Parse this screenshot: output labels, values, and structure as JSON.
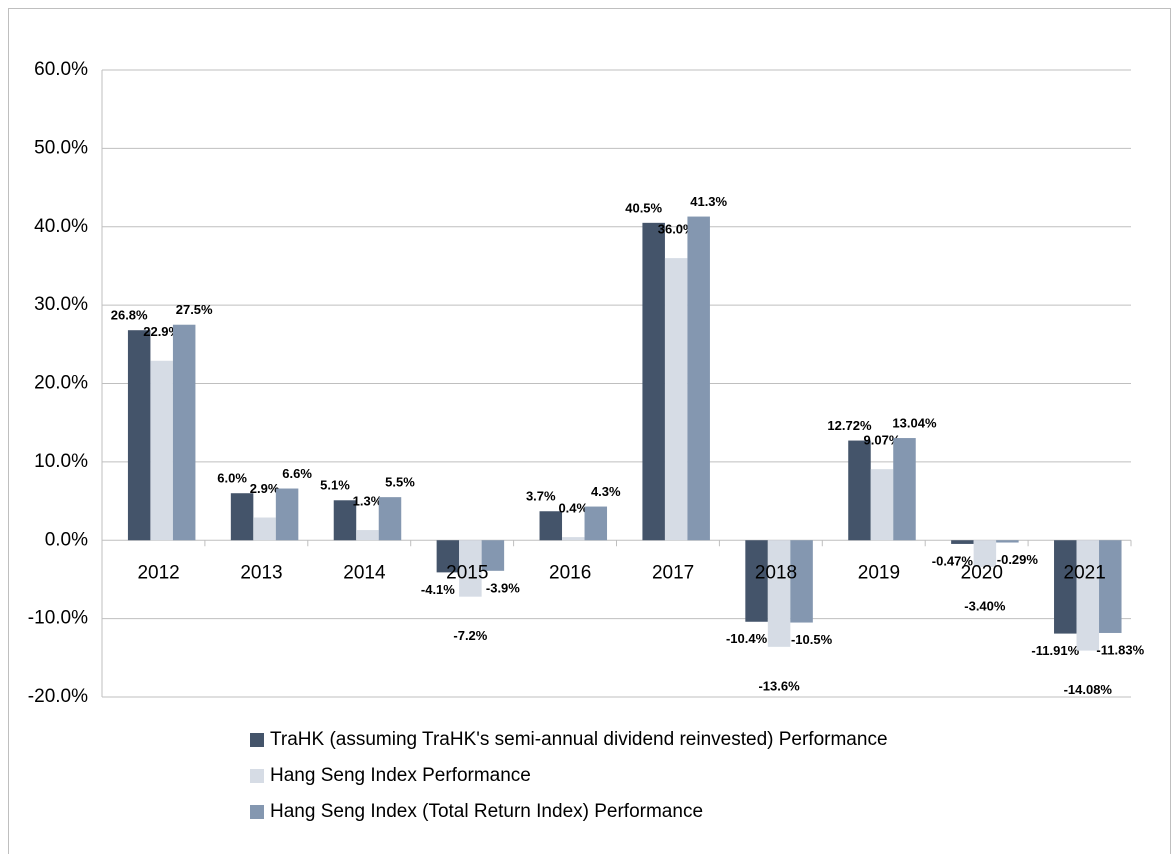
{
  "chart_data": {
    "type": "bar",
    "categories": [
      "2012",
      "2013",
      "2014",
      "2015",
      "2016",
      "2017",
      "2018",
      "2019",
      "2020",
      "2021"
    ],
    "series": [
      {
        "name": "TraHK (assuming TraHK's semi-annual dividend reinvested) Performance",
        "color": "#44546a",
        "values": [
          26.8,
          6.0,
          5.1,
          -4.1,
          3.7,
          40.5,
          -10.4,
          12.72,
          -0.47,
          -11.91
        ],
        "value_labels": [
          "26.8%",
          "6.0%",
          "5.1%",
          "-4.1%",
          "3.7%",
          "40.5%",
          "-10.4%",
          "12.72%",
          "-0.47%",
          "-11.91%"
        ]
      },
      {
        "name": "Hang Seng Index Performance",
        "color": "#d6dce5",
        "values": [
          22.9,
          2.9,
          1.3,
          -7.2,
          0.4,
          36.0,
          -13.6,
          9.07,
          -3.4,
          -14.08
        ],
        "value_labels": [
          "22.9%",
          "2.9%",
          "1.3%",
          "-7.2%",
          "0.4%",
          "36.0%",
          "-13.6%",
          "9.07%",
          "-3.40%",
          "-14.08%"
        ]
      },
      {
        "name": "Hang Seng Index (Total Return Index) Performance",
        "color": "#8497b0",
        "values": [
          27.5,
          6.6,
          5.5,
          -3.9,
          4.3,
          41.3,
          -10.5,
          13.04,
          -0.29,
          -11.83
        ],
        "value_labels": [
          "27.5%",
          "6.6%",
          "5.5%",
          "-3.9%",
          "4.3%",
          "41.3%",
          "-10.5%",
          "13.04%",
          "-0.29%",
          "-11.83%"
        ]
      }
    ],
    "ylim": [
      -20,
      60
    ],
    "yticks": [
      {
        "value": -20,
        "label": "-20.0%"
      },
      {
        "value": -10,
        "label": "-10.0%"
      },
      {
        "value": 0,
        "label": "0.0%"
      },
      {
        "value": 10,
        "label": "10.0%"
      },
      {
        "value": 20,
        "label": "20.0%"
      },
      {
        "value": 30,
        "label": "30.0%"
      },
      {
        "value": 40,
        "label": "40.0%"
      },
      {
        "value": 50,
        "label": "50.0%"
      },
      {
        "value": 60,
        "label": "60.0%"
      }
    ],
    "grid": true,
    "legend": "bottom"
  }
}
